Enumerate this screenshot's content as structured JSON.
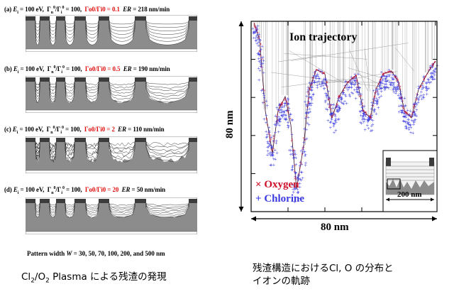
{
  "panels": [
    {
      "prefix": "(a) ",
      "params": "E",
      "sub_i": "i",
      "eq1": " = 100 eV,  Γ",
      "sub_n": "n",
      "sup0a": "0",
      "slash": "/Γ",
      "sub_i2": "i",
      "sup0b": "0",
      "eq2": " = 100,  ",
      "ratio_text": "Γo0/Γi0 = 0.1",
      "er_label": "ER",
      "er_value": " = 218 nm/min"
    },
    {
      "prefix": "(b) ",
      "params": "E",
      "sub_i": "i",
      "eq1": " = 100 eV,  Γ",
      "sub_n": "n",
      "sup0a": "0",
      "slash": "/Γ",
      "sub_i2": "i",
      "sup0b": "0",
      "eq2": " = 100,  ",
      "ratio_text": "Γo0/Γi0 = 0.5",
      "er_label": "ER",
      "er_value": " = 190 nm/min"
    },
    {
      "prefix": "(c) ",
      "params": "E",
      "sub_i": "i",
      "eq1": " = 100 eV,  Γ",
      "sub_n": "n",
      "sup0a": "0",
      "slash": "/Γ",
      "sub_i2": "i",
      "sup0b": "0",
      "eq2": " = 100,  ",
      "ratio_text": "Γo0/Γi0 = 2",
      "er_label": "ER",
      "er_value": " = 110 nm/min"
    },
    {
      "prefix": "(d) ",
      "params": "E",
      "sub_i": "i",
      "eq1": " = 100 eV,  Γ",
      "sub_n": "n",
      "sup0a": "0",
      "slash": "/Γ",
      "sub_i2": "i",
      "sup0b": "0",
      "eq2": " = 100,  ",
      "ratio_text": "Γo0/Γi0 = 20",
      "er_label": "ER",
      "er_value": " = 50 nm/min"
    }
  ],
  "pattern_width": {
    "prefix": "Pattern width ",
    "var": "W",
    "rest": " = 30, 50, 70, 100, 200, and 500 nm"
  },
  "left_caption": {
    "part1": "Cl",
    "sub1": "2",
    "slash": "/O",
    "sub2": "2",
    "rest": " Plasma による残渣の発現"
  },
  "right": {
    "title": "Ion trajectory",
    "y_label": "80 nm",
    "x_label": "80 nm",
    "legend": [
      {
        "symbol": "×",
        "label": "Oxygen",
        "color": "#d0102a"
      },
      {
        "symbol": "+",
        "label": "Chlorine",
        "color": "#3a3ae0"
      }
    ],
    "inset_scale": "200 nm"
  },
  "right_caption": {
    "line1": "残渣構造におけるCl, O の分布と",
    "line2": "イオンの軌跡"
  },
  "colors": {
    "etch_gray": "#8c8c8c",
    "mask_dark": "#3c3c3c",
    "oxygen": "#d0102a",
    "chlorine": "#3a3ae0"
  }
}
